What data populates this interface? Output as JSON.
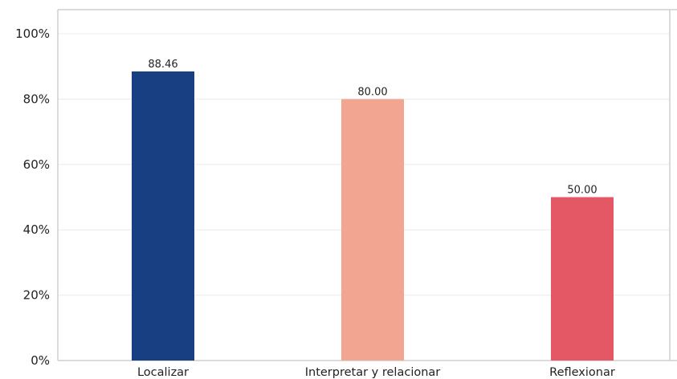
{
  "chart_data": {
    "type": "bar",
    "title": "",
    "xlabel": "",
    "ylabel": "",
    "categories": [
      "Localizar",
      "Interpretar y relacionar",
      "Reflexionar"
    ],
    "values": [
      88.46,
      80.0,
      50.0
    ],
    "data_labels": [
      "88.46",
      "80.00",
      "50.00"
    ],
    "colors": [
      "#173f82",
      "#f2a692",
      "#e45765"
    ],
    "ylim": [
      0,
      100
    ],
    "yticks": [
      0,
      20,
      40,
      60,
      80,
      100
    ],
    "ytick_labels": [
      "0%",
      "20%",
      "40%",
      "60%",
      "80%",
      "100%"
    ],
    "grid": true,
    "legend": "none"
  }
}
